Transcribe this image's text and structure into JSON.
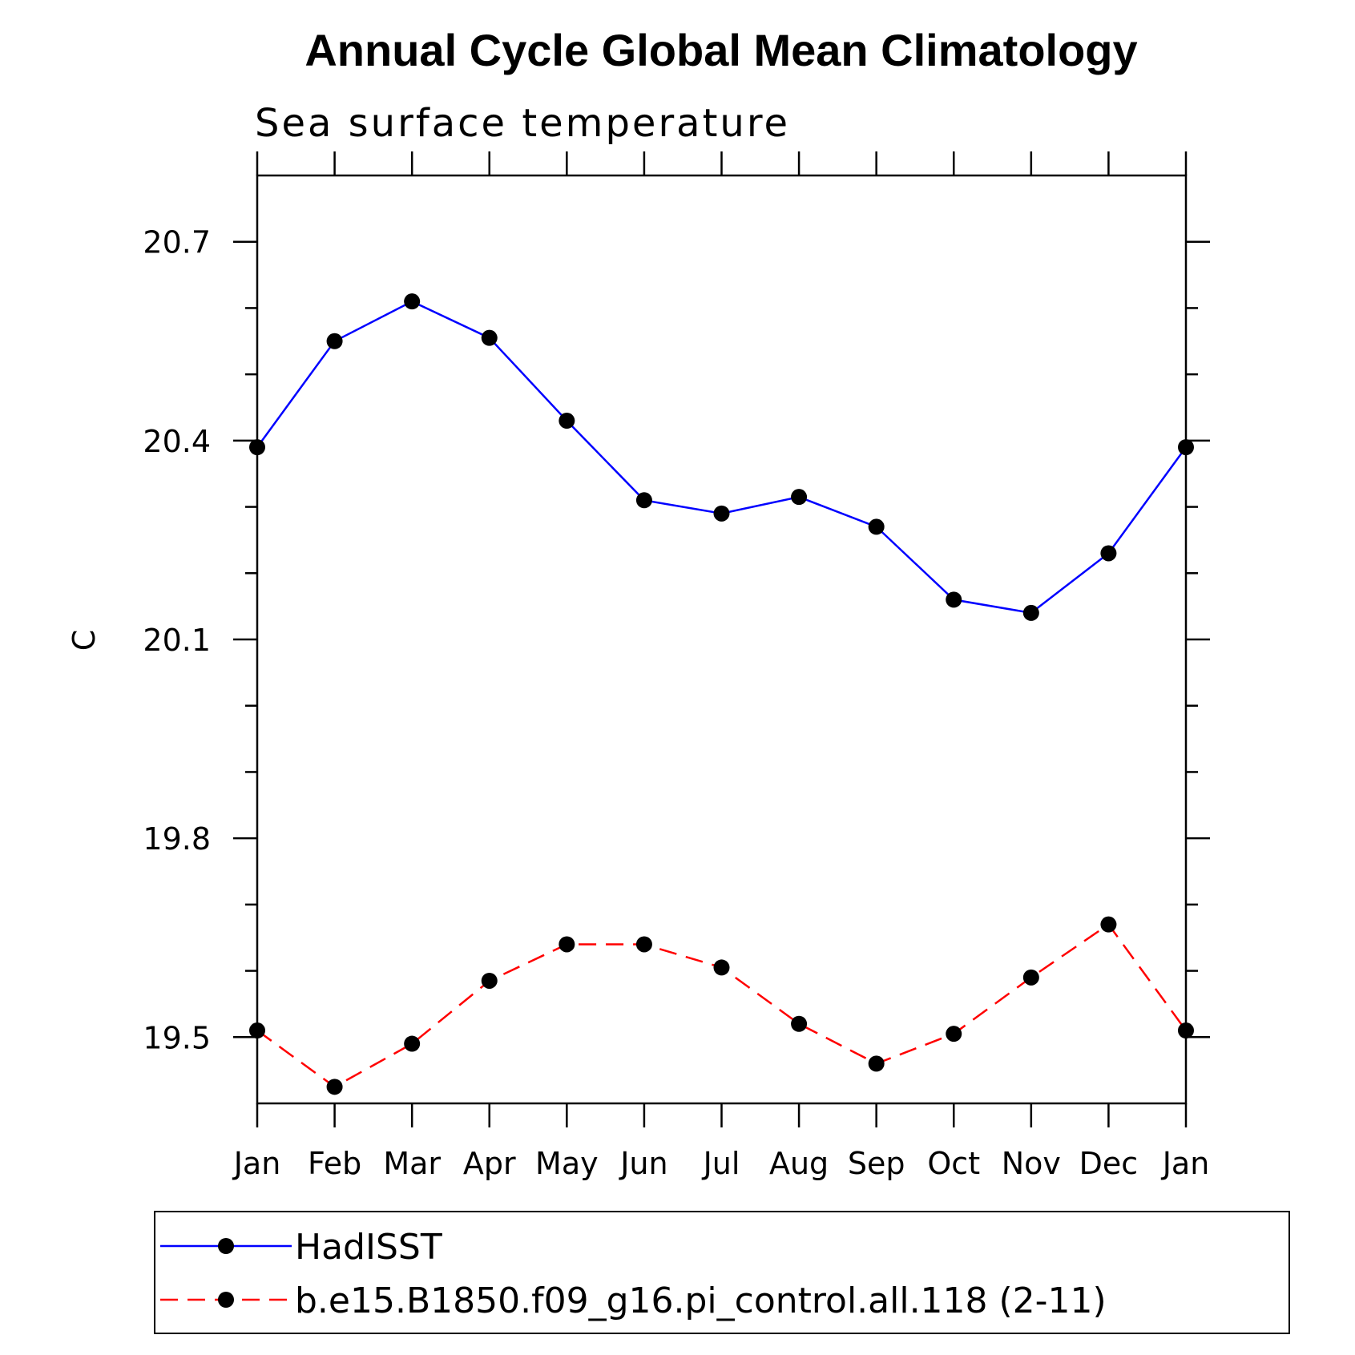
{
  "chart_data": {
    "type": "line",
    "title": "Annual Cycle Global Mean Climatology",
    "subtitle": "Sea surface temperature",
    "xlabel": "",
    "ylabel": "C",
    "categories": [
      "Jan",
      "Feb",
      "Mar",
      "Apr",
      "May",
      "Jun",
      "Jul",
      "Aug",
      "Sep",
      "Oct",
      "Nov",
      "Dec",
      "Jan"
    ],
    "ylim": [
      19.4,
      20.8
    ],
    "yticks": [
      "19.5",
      "19.8",
      "20.1",
      "20.4",
      "20.7"
    ],
    "grid": false,
    "legend_position": "bottom",
    "series": [
      {
        "name": "HadISST",
        "color": "#0000ff",
        "dash": "solid",
        "marker": "filled-circle",
        "values": [
          20.39,
          20.55,
          20.61,
          20.555,
          20.43,
          20.31,
          20.29,
          20.315,
          20.27,
          20.16,
          20.14,
          20.23,
          20.39
        ]
      },
      {
        "name": "b.e15.B1850.f09_g16.pi_control.all.118 (2-11)",
        "color": "#ff0000",
        "dash": "dashed",
        "marker": "filled-circle",
        "values": [
          19.51,
          19.425,
          19.49,
          19.585,
          19.64,
          19.64,
          19.605,
          19.52,
          19.46,
          19.505,
          19.59,
          19.67,
          19.51
        ]
      }
    ]
  }
}
